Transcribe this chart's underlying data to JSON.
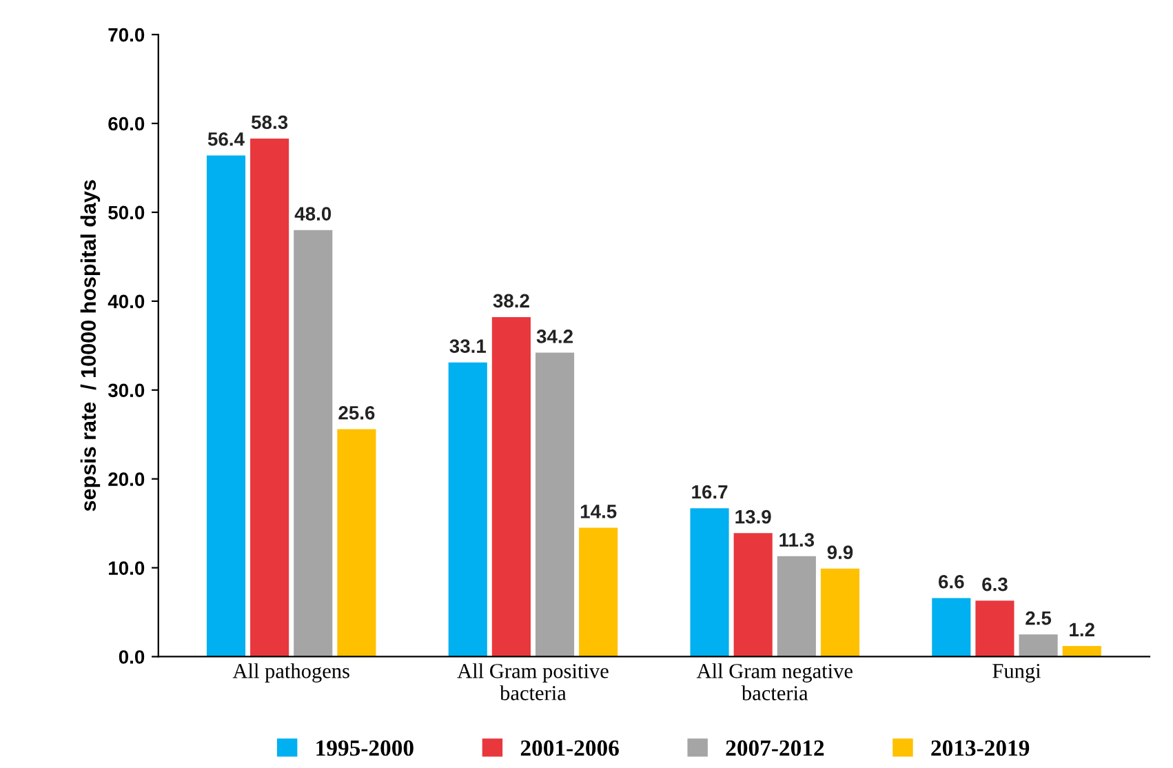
{
  "chart_data": {
    "type": "bar",
    "ylabel": "sepsis rate  / 10000 hospital days",
    "categories": [
      "All pathogens",
      "All Gram positive\nbacteria",
      "All Gram negative\nbacteria",
      "Fungi"
    ],
    "series": [
      {
        "name": "1995-2000",
        "color": "#00b0f0",
        "values": [
          56.4,
          33.1,
          16.7,
          6.6
        ],
        "value_labels": [
          "56.4",
          "33.1",
          "16.7",
          "6.6"
        ]
      },
      {
        "name": "2001-2006",
        "color": "#e8383d",
        "values": [
          58.3,
          38.2,
          13.9,
          6.3
        ],
        "value_labels": [
          "58.3",
          "38.2",
          "13.9",
          "6.3"
        ]
      },
      {
        "name": "2007-2012",
        "color": "#a5a5a5",
        "values": [
          48.0,
          34.2,
          11.3,
          2.5
        ],
        "value_labels": [
          "48.0",
          "34.2",
          "11.3",
          "2.5"
        ]
      },
      {
        "name": "2013-2019",
        "color": "#ffc000",
        "values": [
          25.6,
          14.5,
          9.9,
          1.2
        ],
        "value_labels": [
          "25.6",
          "14.5",
          "9.9",
          "1.2"
        ]
      }
    ],
    "ylim": [
      0,
      70
    ],
    "yticks": [
      {
        "value": 0,
        "label": "0.0"
      },
      {
        "value": 10,
        "label": "10.0"
      },
      {
        "value": 20,
        "label": "20.0"
      },
      {
        "value": 30,
        "label": "30.0"
      },
      {
        "value": 40,
        "label": "40.0"
      },
      {
        "value": 50,
        "label": "50.0"
      },
      {
        "value": 60,
        "label": "60.0"
      },
      {
        "value": 70,
        "label": "70.0"
      }
    ],
    "grid": false,
    "legend": "bottom"
  }
}
